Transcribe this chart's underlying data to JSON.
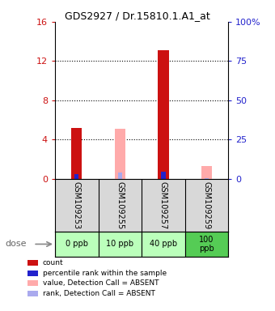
{
  "title": "GDS2927 / Dr.15810.1.A1_at",
  "samples": [
    "GSM109253",
    "GSM109255",
    "GSM109257",
    "GSM109259"
  ],
  "doses": [
    "0 ppb",
    "10 ppb",
    "40 ppb",
    "100\nppb"
  ],
  "dose_colors": [
    "#bbffbb",
    "#bbffbb",
    "#bbffbb",
    "#55cc55"
  ],
  "bar_positions": [
    0,
    1,
    2,
    3
  ],
  "count_values": [
    5.2,
    0,
    13.1,
    0
  ],
  "rank_values": [
    3.2,
    0,
    4.4,
    0
  ],
  "absent_value_values": [
    0,
    5.1,
    0,
    1.3
  ],
  "absent_rank_values": [
    0,
    3.8,
    0,
    0.5
  ],
  "ylim_left": [
    0,
    16
  ],
  "ylim_right": [
    0,
    100
  ],
  "yticks_left": [
    0,
    4,
    8,
    12,
    16
  ],
  "yticks_right": [
    0,
    25,
    50,
    75,
    100
  ],
  "left_tick_labels": [
    "0",
    "4",
    "8",
    "12",
    "16"
  ],
  "right_tick_labels": [
    "0",
    "25",
    "50",
    "75",
    "100%"
  ],
  "count_color": "#cc1111",
  "rank_color": "#2222cc",
  "absent_value_color": "#ffaaaa",
  "absent_rank_color": "#aaaaee",
  "bar_width": 0.25,
  "rank_bar_width": 0.1,
  "legend_items": [
    {
      "color": "#cc1111",
      "label": "count"
    },
    {
      "color": "#2222cc",
      "label": "percentile rank within the sample"
    },
    {
      "color": "#ffaaaa",
      "label": "value, Detection Call = ABSENT"
    },
    {
      "color": "#aaaaee",
      "label": "rank, Detection Call = ABSENT"
    }
  ]
}
